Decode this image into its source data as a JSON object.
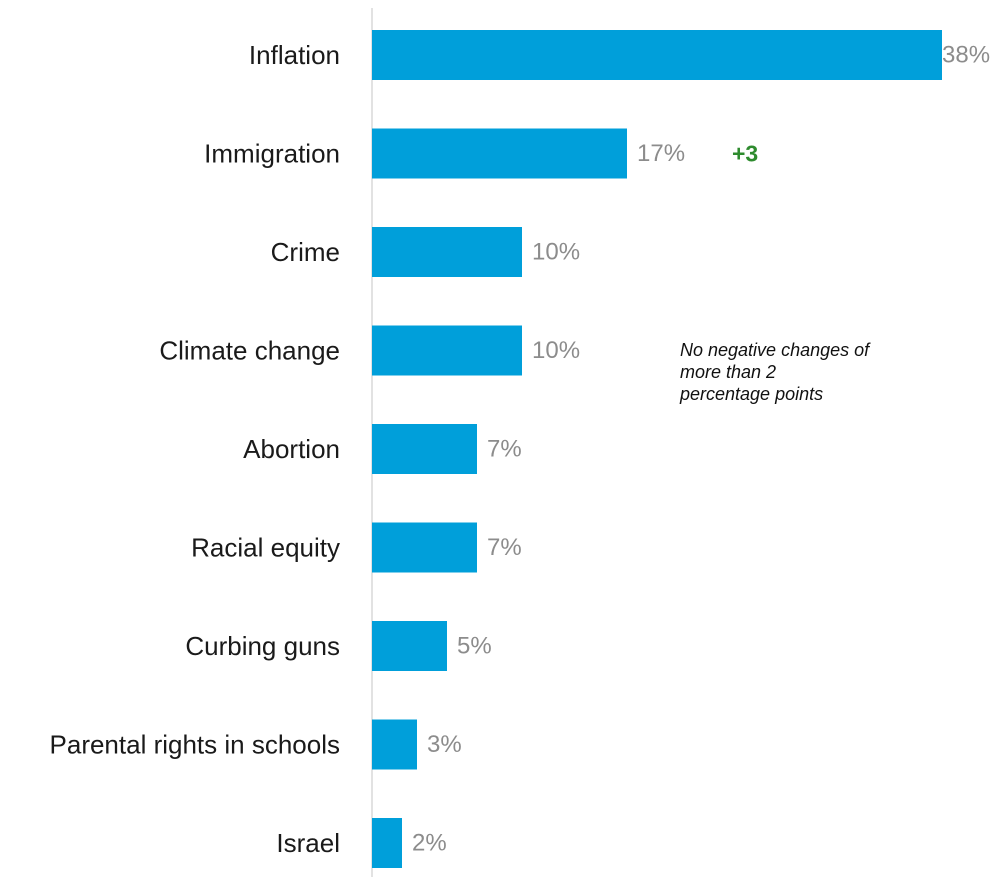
{
  "chart_data": {
    "type": "bar",
    "orientation": "horizontal",
    "categories": [
      "Inflation",
      "Immigration",
      "Crime",
      "Climate change",
      "Abortion",
      "Racial equity",
      "Curbing guns",
      "Parental rights in schools",
      "Israel"
    ],
    "values": [
      38,
      17,
      10,
      10,
      7,
      7,
      5,
      3,
      2
    ],
    "value_labels": [
      "38%",
      "17%",
      "10%",
      "10%",
      "7%",
      "7%",
      "5%",
      "3%",
      "2%"
    ],
    "changes": [
      {
        "category": "Immigration",
        "label": "+3"
      }
    ],
    "annotation": "No negative changes of\nmore than 2\npercentage points",
    "xlim": [
      0,
      38
    ],
    "grid": false,
    "legend": "none",
    "colors": {
      "bar": "#009fda",
      "value_text": "#8c8c8c",
      "category_text": "#1a1a1a",
      "positive_change": "#2e8b2e",
      "axis": "#d9d9d9"
    }
  }
}
